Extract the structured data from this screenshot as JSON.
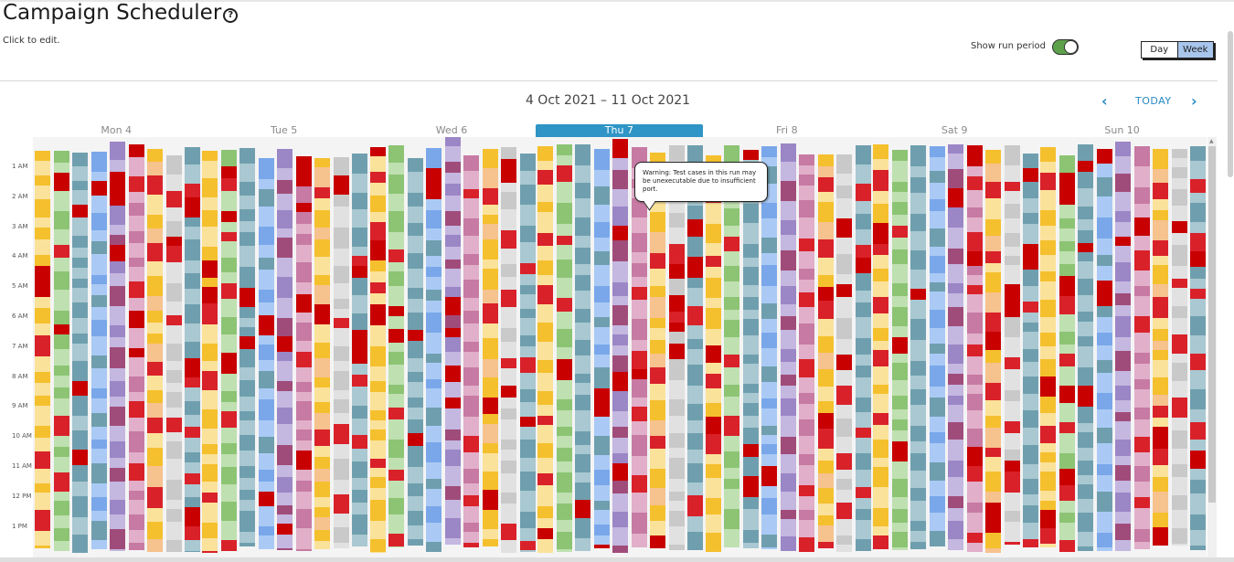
{
  "header": {
    "title": "Campaign Scheduler",
    "help_icon": "question-circle-icon",
    "hint": "Click to edit."
  },
  "controls": {
    "show_run_period_label": "Show run period",
    "show_run_period_on": true,
    "view_day": "Day",
    "view_week": "Week",
    "active_view": "Week"
  },
  "calendar": {
    "date_range": "4 Oct 2021 – 11 Oct 2021",
    "today_label": "TODAY",
    "prev_icon": "chevron-left-icon",
    "next_icon": "chevron-right-icon",
    "days": [
      {
        "label": "Mon 4",
        "active": false
      },
      {
        "label": "Tue 5",
        "active": false
      },
      {
        "label": "Wed 6",
        "active": false
      },
      {
        "label": "Thu 7",
        "active": true
      },
      {
        "label": "Fri 8",
        "active": false
      },
      {
        "label": "Sat 9",
        "active": false
      },
      {
        "label": "Sun 10",
        "active": false
      }
    ],
    "hours": [
      "1 AM",
      "2 AM",
      "3 AM",
      "4 AM",
      "5 AM",
      "6 AM",
      "7 AM",
      "8 AM",
      "9 AM",
      "10 AM",
      "11 AM",
      "12 PM",
      "1 PM"
    ],
    "bars_per_day": 9,
    "palette": {
      "yellow": "#f5c02e",
      "yellow_light": "#fbe29a",
      "green": "#8cc474",
      "green_light": "#bfe0b0",
      "teal": "#6f9fae",
      "teal_light": "#a9c8d1",
      "blue": "#79a7ea",
      "blue_light": "#aacaf5",
      "purple": "#9b86c6",
      "purple_light": "#c4b7e0",
      "magenta": "#a04c7a",
      "pink": "#c77aa3",
      "pink_light": "#e1afc9",
      "gray": "#c9c9c9",
      "gray_light": "#e1e1e1",
      "red": "#d9212a",
      "red_dark": "#c80000",
      "peach": "#f6c28e"
    }
  },
  "tooltip": {
    "text": "Warning: Test cases in this run may be unexecutable due to insufficient port."
  }
}
